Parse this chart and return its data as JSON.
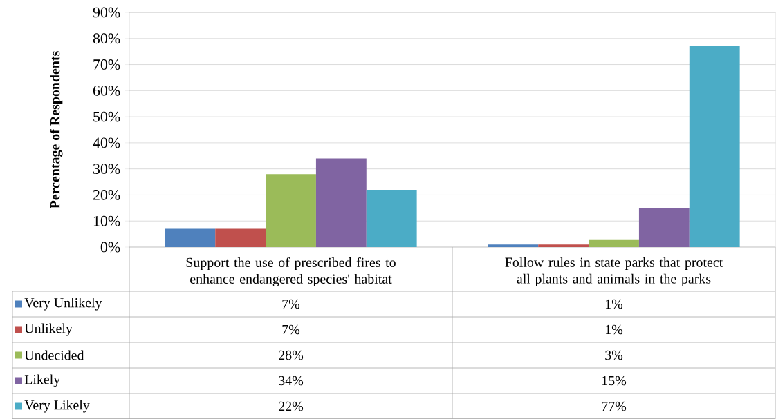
{
  "chart_data": {
    "type": "bar",
    "ylabel": "Percentage of Respondents",
    "categories": [
      "Support the use of prescribed fires to enhance endangered species' habitat",
      "Follow rules in state parks that protect all plants and animals in the parks"
    ],
    "series": [
      {
        "name": "Very Unlikely",
        "color": "#4f81bd",
        "values": [
          7,
          1
        ],
        "value_labels": [
          "7%",
          "1%"
        ]
      },
      {
        "name": "Unlikely",
        "color": "#c0504d",
        "values": [
          7,
          1
        ],
        "value_labels": [
          "7%",
          "1%"
        ]
      },
      {
        "name": "Undecided",
        "color": "#9bbb59",
        "values": [
          28,
          3
        ],
        "value_labels": [
          "28%",
          "3%"
        ]
      },
      {
        "name": "Likely",
        "color": "#8064a2",
        "values": [
          34,
          15
        ],
        "value_labels": [
          "34%",
          "15%"
        ]
      },
      {
        "name": "Very Likely",
        "color": "#4bacc6",
        "values": [
          22,
          77
        ],
        "value_labels": [
          "22%",
          "77%"
        ]
      }
    ],
    "ylim": [
      0,
      90
    ],
    "yticks": [
      {
        "value": 0,
        "label": "0%"
      },
      {
        "value": 10,
        "label": "10%"
      },
      {
        "value": 20,
        "label": "20%"
      },
      {
        "value": 30,
        "label": "30%"
      },
      {
        "value": 40,
        "label": "40%"
      },
      {
        "value": 50,
        "label": "50%"
      },
      {
        "value": 60,
        "label": "60%"
      },
      {
        "value": 70,
        "label": "70%"
      },
      {
        "value": 80,
        "label": "80%"
      },
      {
        "value": 90,
        "label": "90%"
      }
    ],
    "grid": "y",
    "legend": "bottom"
  }
}
